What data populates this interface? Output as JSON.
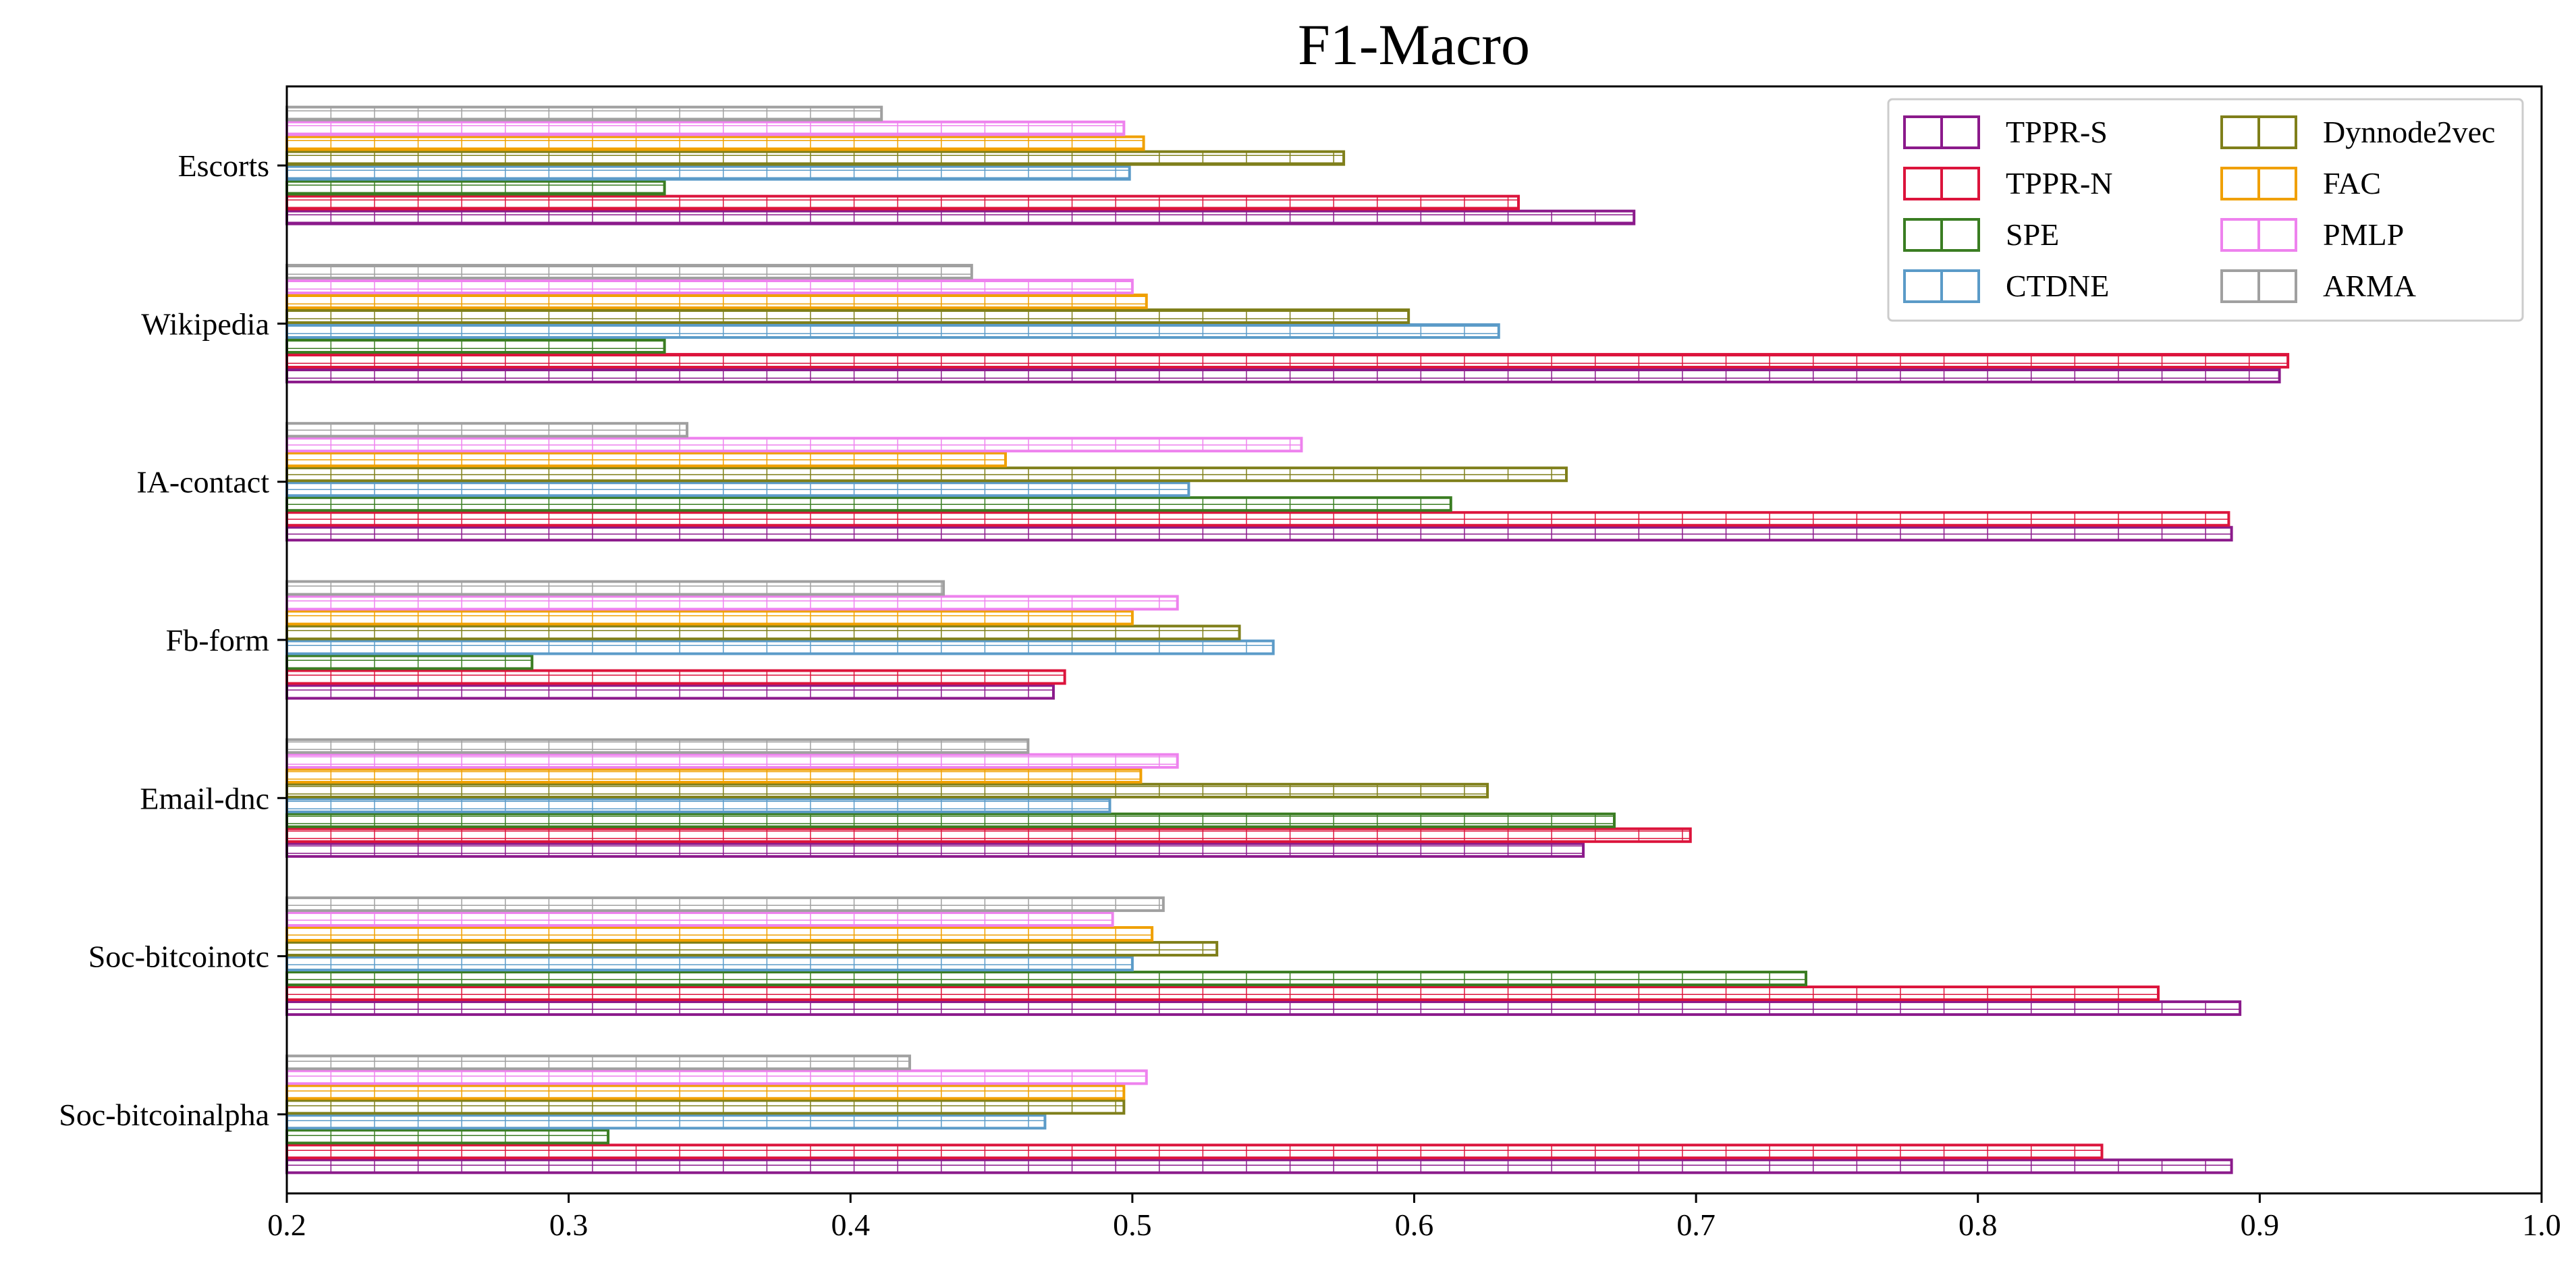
{
  "chart_data": {
    "type": "bar",
    "orientation": "horizontal",
    "title": "F1-Macro",
    "xlabel": "",
    "ylabel": "",
    "xlim": [
      0.2,
      1.0
    ],
    "xticks": [
      "0.2",
      "0.3",
      "0.4",
      "0.5",
      "0.6",
      "0.7",
      "0.8",
      "0.9",
      "1.0"
    ],
    "grid": false,
    "legend_position": "top-right",
    "legend_columns": 2,
    "hatch": "grid",
    "categories": [
      "Escorts",
      "Wikipedia",
      "IA-contact",
      "Fb-form",
      "Email-dnc",
      "Soc-bitcoinotc",
      "Soc-bitcoinalpha"
    ],
    "series": [
      {
        "name": "TPPR-S",
        "color": "#8B1A8B",
        "values": [
          0.678,
          0.907,
          0.89,
          0.472,
          0.66,
          0.893,
          0.89
        ]
      },
      {
        "name": "TPPR-N",
        "color": "#DC143C",
        "values": [
          0.637,
          0.91,
          0.889,
          0.476,
          0.698,
          0.864,
          0.844
        ]
      },
      {
        "name": "SPE",
        "color": "#3A7D22",
        "values": [
          0.334,
          0.334,
          0.613,
          0.287,
          0.671,
          0.739,
          0.314
        ]
      },
      {
        "name": "CTDNE",
        "color": "#5B9BC8",
        "values": [
          0.499,
          0.63,
          0.52,
          0.55,
          0.492,
          0.5,
          0.469
        ]
      },
      {
        "name": "Dynnode2vec",
        "color": "#7F7F1A",
        "values": [
          0.575,
          0.598,
          0.654,
          0.538,
          0.626,
          0.53,
          0.497
        ]
      },
      {
        "name": "FAC",
        "color": "#F0A000",
        "values": [
          0.504,
          0.505,
          0.455,
          0.5,
          0.503,
          0.507,
          0.497
        ]
      },
      {
        "name": "PMLP",
        "color": "#EE82EE",
        "values": [
          0.497,
          0.5,
          0.56,
          0.516,
          0.516,
          0.493,
          0.505
        ]
      },
      {
        "name": "ARMA",
        "color": "#A0A0A0",
        "values": [
          0.411,
          0.443,
          0.342,
          0.433,
          0.463,
          0.511,
          0.421
        ]
      }
    ]
  }
}
